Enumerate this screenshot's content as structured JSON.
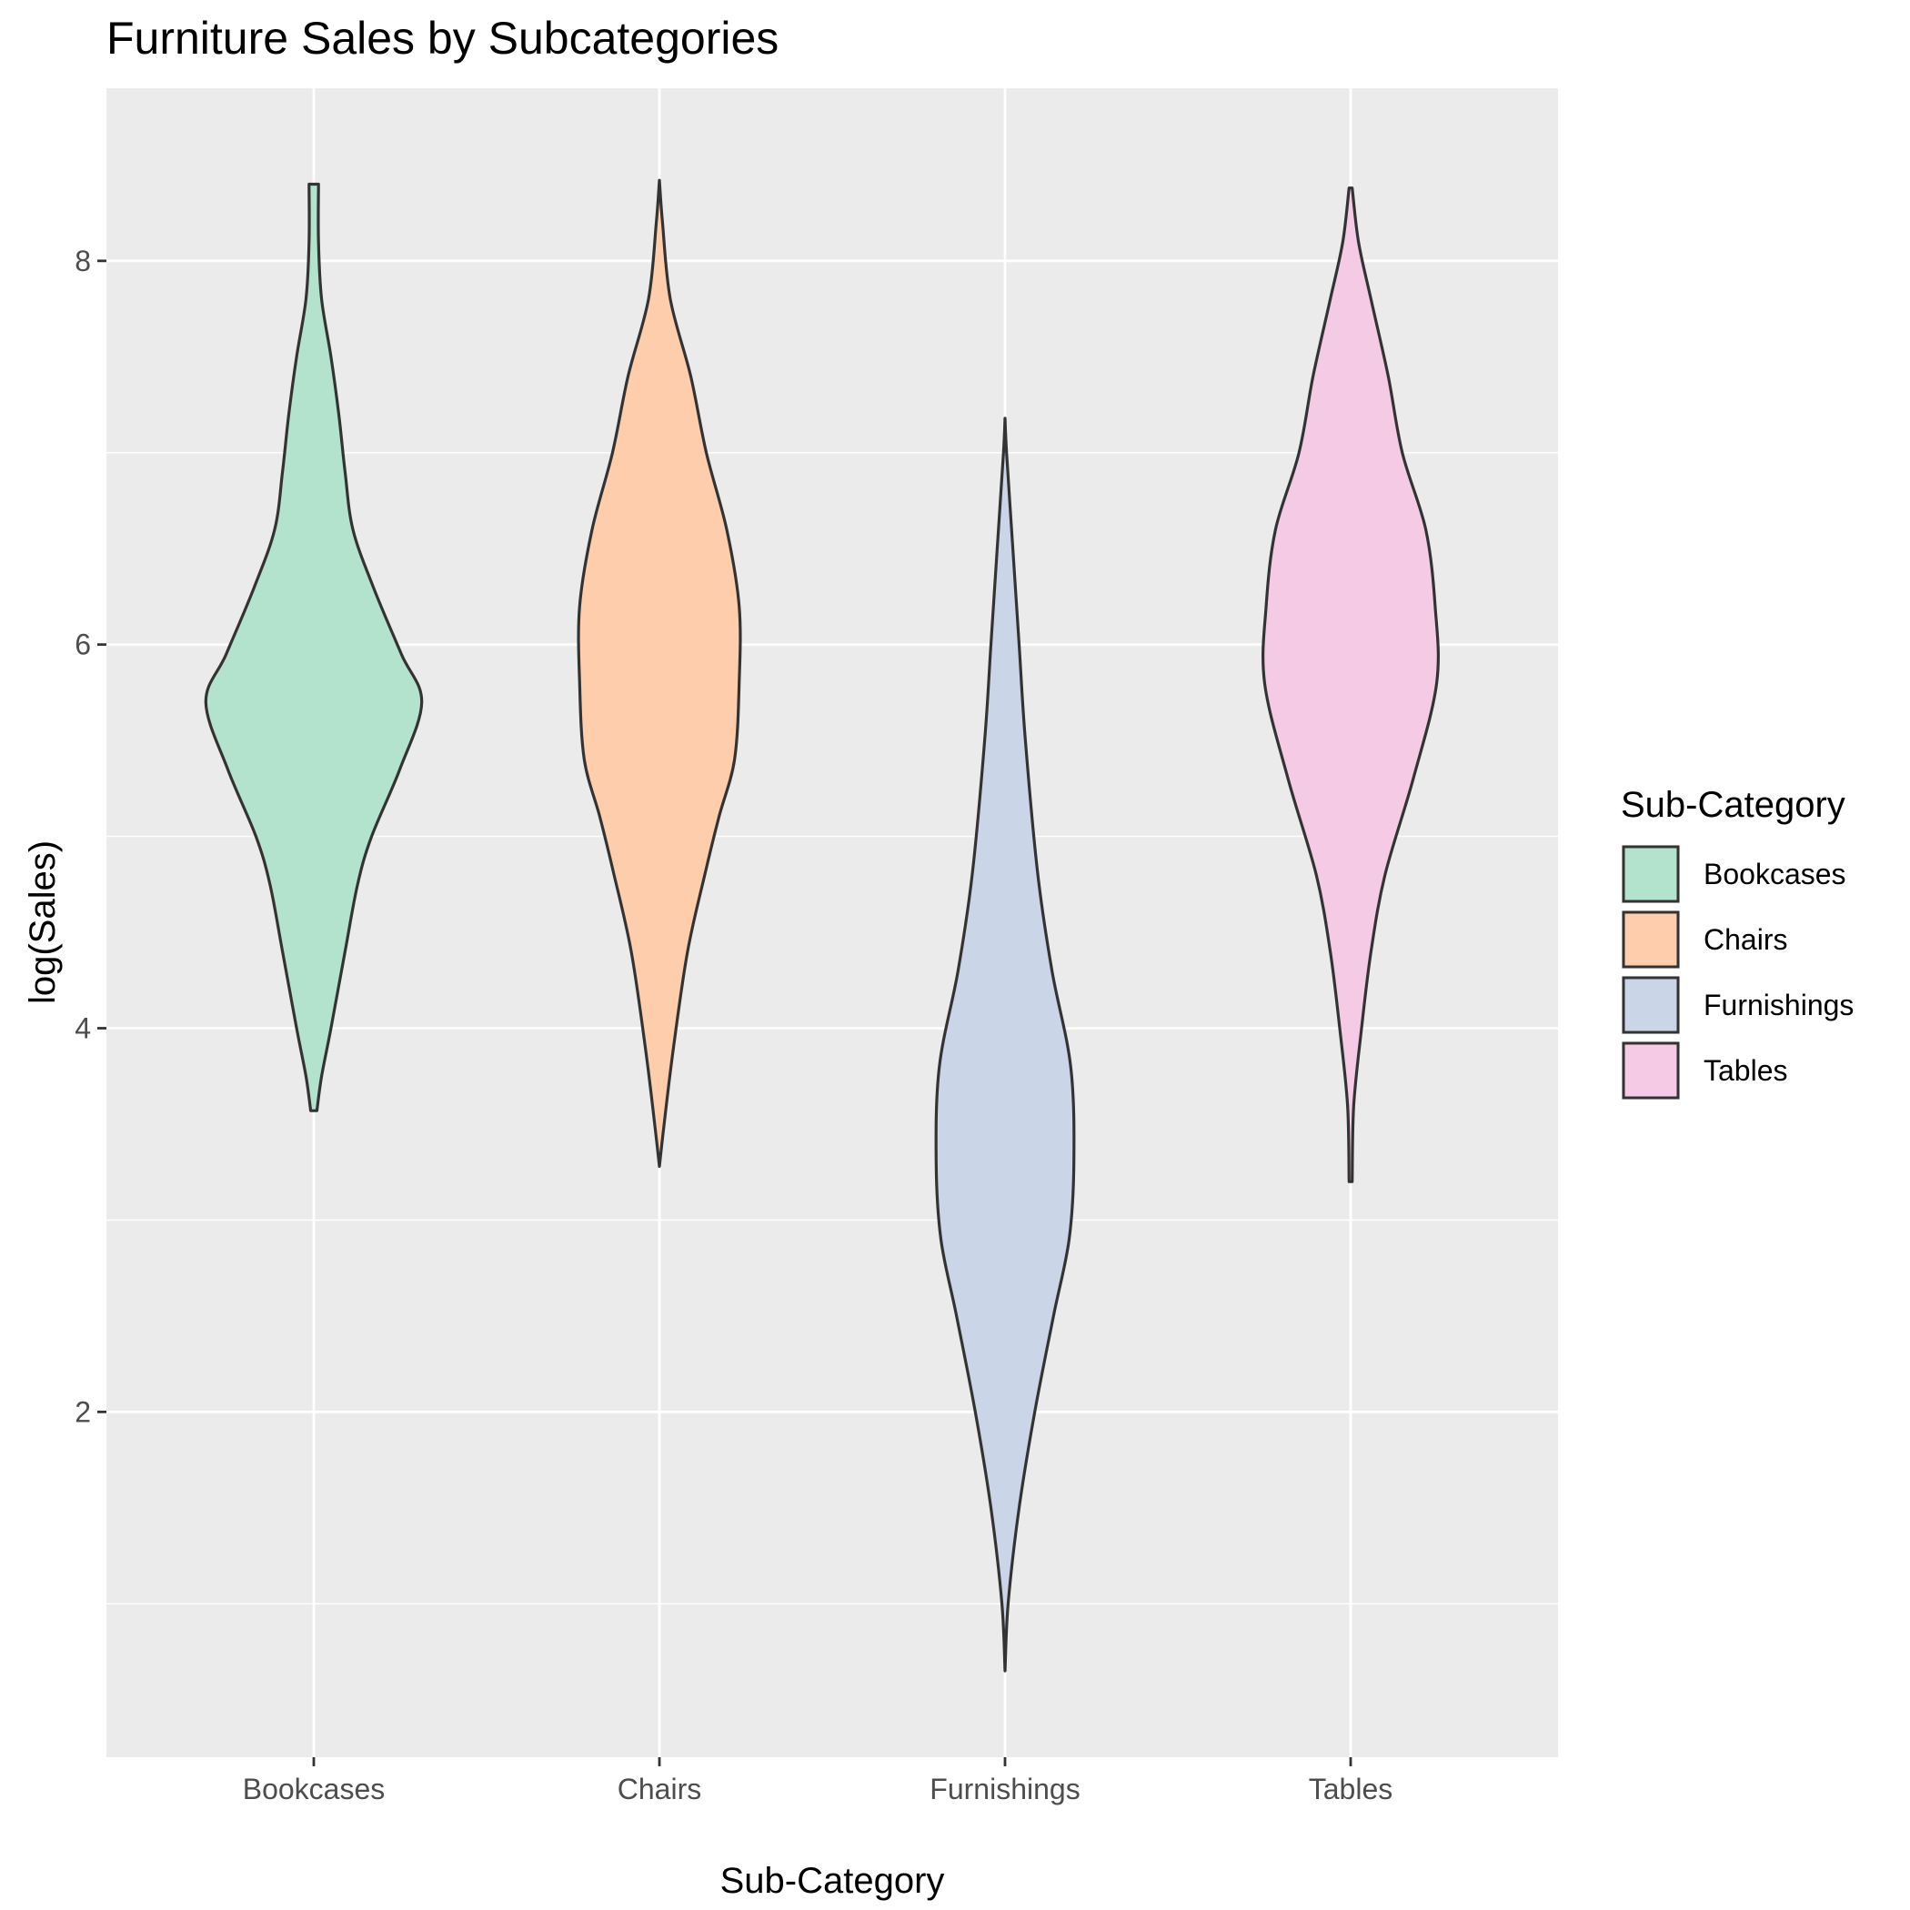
{
  "chart_data": {
    "type": "violin",
    "title": "Furniture Sales by Subcategories",
    "xlabel": "Sub-Category",
    "ylabel": "log(Sales)",
    "ylim": [
      0.2,
      8.9
    ],
    "yticks": [
      2,
      4,
      6,
      8
    ],
    "categories": [
      "Bookcases",
      "Chairs",
      "Furnishings",
      "Tables"
    ],
    "legend": {
      "title": "Sub-Category",
      "position": "right"
    },
    "grid": true,
    "panel_background": "#EBEBEB",
    "outline_color": "#333333",
    "series": [
      {
        "name": "Bookcases",
        "color": "#B3E2CD",
        "min": 3.57,
        "max": 8.4,
        "density": [
          [
            3.57,
            0.02
          ],
          [
            3.75,
            0.05
          ],
          [
            4.0,
            0.11
          ],
          [
            4.4,
            0.2
          ],
          [
            4.75,
            0.28
          ],
          [
            5.0,
            0.37
          ],
          [
            5.35,
            0.55
          ],
          [
            5.7,
            0.69
          ],
          [
            5.95,
            0.56
          ],
          [
            6.3,
            0.38
          ],
          [
            6.6,
            0.25
          ],
          [
            6.9,
            0.2
          ],
          [
            7.2,
            0.16
          ],
          [
            7.5,
            0.11
          ],
          [
            7.8,
            0.05
          ],
          [
            8.1,
            0.03
          ],
          [
            8.4,
            0.03
          ]
        ]
      },
      {
        "name": "Chairs",
        "color": "#FDCDAC",
        "min": 3.28,
        "max": 8.42,
        "density": [
          [
            3.28,
            0.0
          ],
          [
            3.5,
            0.03
          ],
          [
            3.9,
            0.09
          ],
          [
            4.4,
            0.18
          ],
          [
            4.8,
            0.29
          ],
          [
            5.1,
            0.38
          ],
          [
            5.4,
            0.48
          ],
          [
            5.8,
            0.51
          ],
          [
            6.2,
            0.51
          ],
          [
            6.6,
            0.43
          ],
          [
            7.0,
            0.3
          ],
          [
            7.4,
            0.2
          ],
          [
            7.8,
            0.07
          ],
          [
            8.2,
            0.02
          ],
          [
            8.42,
            0.0
          ]
        ]
      },
      {
        "name": "Furnishings",
        "color": "#CBD5E8",
        "min": 0.65,
        "max": 7.18,
        "density": [
          [
            0.65,
            0.0
          ],
          [
            1.0,
            0.02
          ],
          [
            1.5,
            0.09
          ],
          [
            2.0,
            0.19
          ],
          [
            2.5,
            0.31
          ],
          [
            2.9,
            0.41
          ],
          [
            3.3,
            0.44
          ],
          [
            3.8,
            0.42
          ],
          [
            4.3,
            0.3
          ],
          [
            4.8,
            0.21
          ],
          [
            5.5,
            0.13
          ],
          [
            6.0,
            0.09
          ],
          [
            6.5,
            0.05
          ],
          [
            7.0,
            0.01
          ],
          [
            7.18,
            0.0
          ]
        ]
      },
      {
        "name": "Tables",
        "color": "#F4CAE4",
        "min": 3.2,
        "max": 8.38,
        "density": [
          [
            3.2,
            0.01
          ],
          [
            3.6,
            0.02
          ],
          [
            4.0,
            0.07
          ],
          [
            4.4,
            0.13
          ],
          [
            4.8,
            0.22
          ],
          [
            5.3,
            0.4
          ],
          [
            5.8,
            0.55
          ],
          [
            6.2,
            0.54
          ],
          [
            6.6,
            0.48
          ],
          [
            7.0,
            0.33
          ],
          [
            7.4,
            0.24
          ],
          [
            7.8,
            0.13
          ],
          [
            8.1,
            0.05
          ],
          [
            8.38,
            0.01
          ]
        ]
      }
    ]
  }
}
